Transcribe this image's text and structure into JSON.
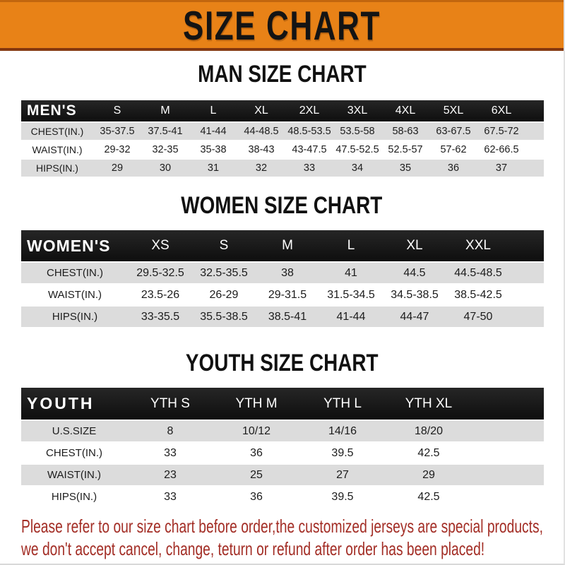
{
  "banner": {
    "title": "SIZE CHART"
  },
  "colors": {
    "banner_bg": "#E88217",
    "banner_border_bottom": "#84380F",
    "table_header_bg": "#141414",
    "row_stripe_gray": "#DCDCDC",
    "footer_red": "#A32E26"
  },
  "sections": [
    {
      "id": "men",
      "title": "MAN SIZE CHART",
      "corner_label": "MEN'S",
      "columns": [
        "S",
        "M",
        "L",
        "XL",
        "2XL",
        "3XL",
        "4XL",
        "5XL",
        "6XL"
      ],
      "rows": [
        {
          "label": "CHEST(IN.)",
          "values": [
            "35-37.5",
            "37.5-41",
            "41-44",
            "44-48.5",
            "48.5-53.5",
            "53.5-58",
            "58-63",
            "63-67.5",
            "67.5-72"
          ]
        },
        {
          "label": "WAIST(IN.)",
          "values": [
            "29-32",
            "32-35",
            "35-38",
            "38-43",
            "43-47.5",
            "47.5-52.5",
            "52.5-57",
            "57-62",
            "62-66.5"
          ]
        },
        {
          "label": "HIPS(IN.)",
          "values": [
            "29",
            "30",
            "31",
            "32",
            "33",
            "34",
            "35",
            "36",
            "37"
          ]
        }
      ]
    },
    {
      "id": "women",
      "title": "WOMEN SIZE CHART",
      "corner_label": "WOMEN'S",
      "columns": [
        "XS",
        "S",
        "M",
        "L",
        "XL",
        "XXL"
      ],
      "rows": [
        {
          "label": "CHEST(IN.)",
          "values": [
            "29.5-32.5",
            "32.5-35.5",
            "38",
            "41",
            "44.5",
            "44.5-48.5"
          ]
        },
        {
          "label": "WAIST(IN.)",
          "values": [
            "23.5-26",
            "26-29",
            "29-31.5",
            "31.5-34.5",
            "34.5-38.5",
            "38.5-42.5"
          ]
        },
        {
          "label": "HIPS(IN.)",
          "values": [
            "33-35.5",
            "35.5-38.5",
            "38.5-41",
            "41-44",
            "44-47",
            "47-50"
          ]
        }
      ]
    },
    {
      "id": "youth",
      "title": "YOUTH SIZE CHART",
      "corner_label": "YOUTH",
      "columns": [
        "YTH S",
        "YTH M",
        "YTH L",
        "YTH XL"
      ],
      "rows": [
        {
          "label": "U.S.SIZE",
          "values": [
            "8",
            "10/12",
            "14/16",
            "18/20"
          ]
        },
        {
          "label": "CHEST(IN.)",
          "values": [
            "33",
            "36",
            "39.5",
            "42.5"
          ]
        },
        {
          "label": "WAIST(IN.)",
          "values": [
            "23",
            "25",
            "27",
            "29"
          ]
        },
        {
          "label": "HIPS(IN.)",
          "values": [
            "33",
            "36",
            "39.5",
            "42.5"
          ]
        }
      ]
    }
  ],
  "footer": {
    "line1": "Please refer to our size chart before order,the customized jerseys are special products,",
    "line2": "we don't accept cancel, change, teturn or refund after order has been placed!"
  }
}
